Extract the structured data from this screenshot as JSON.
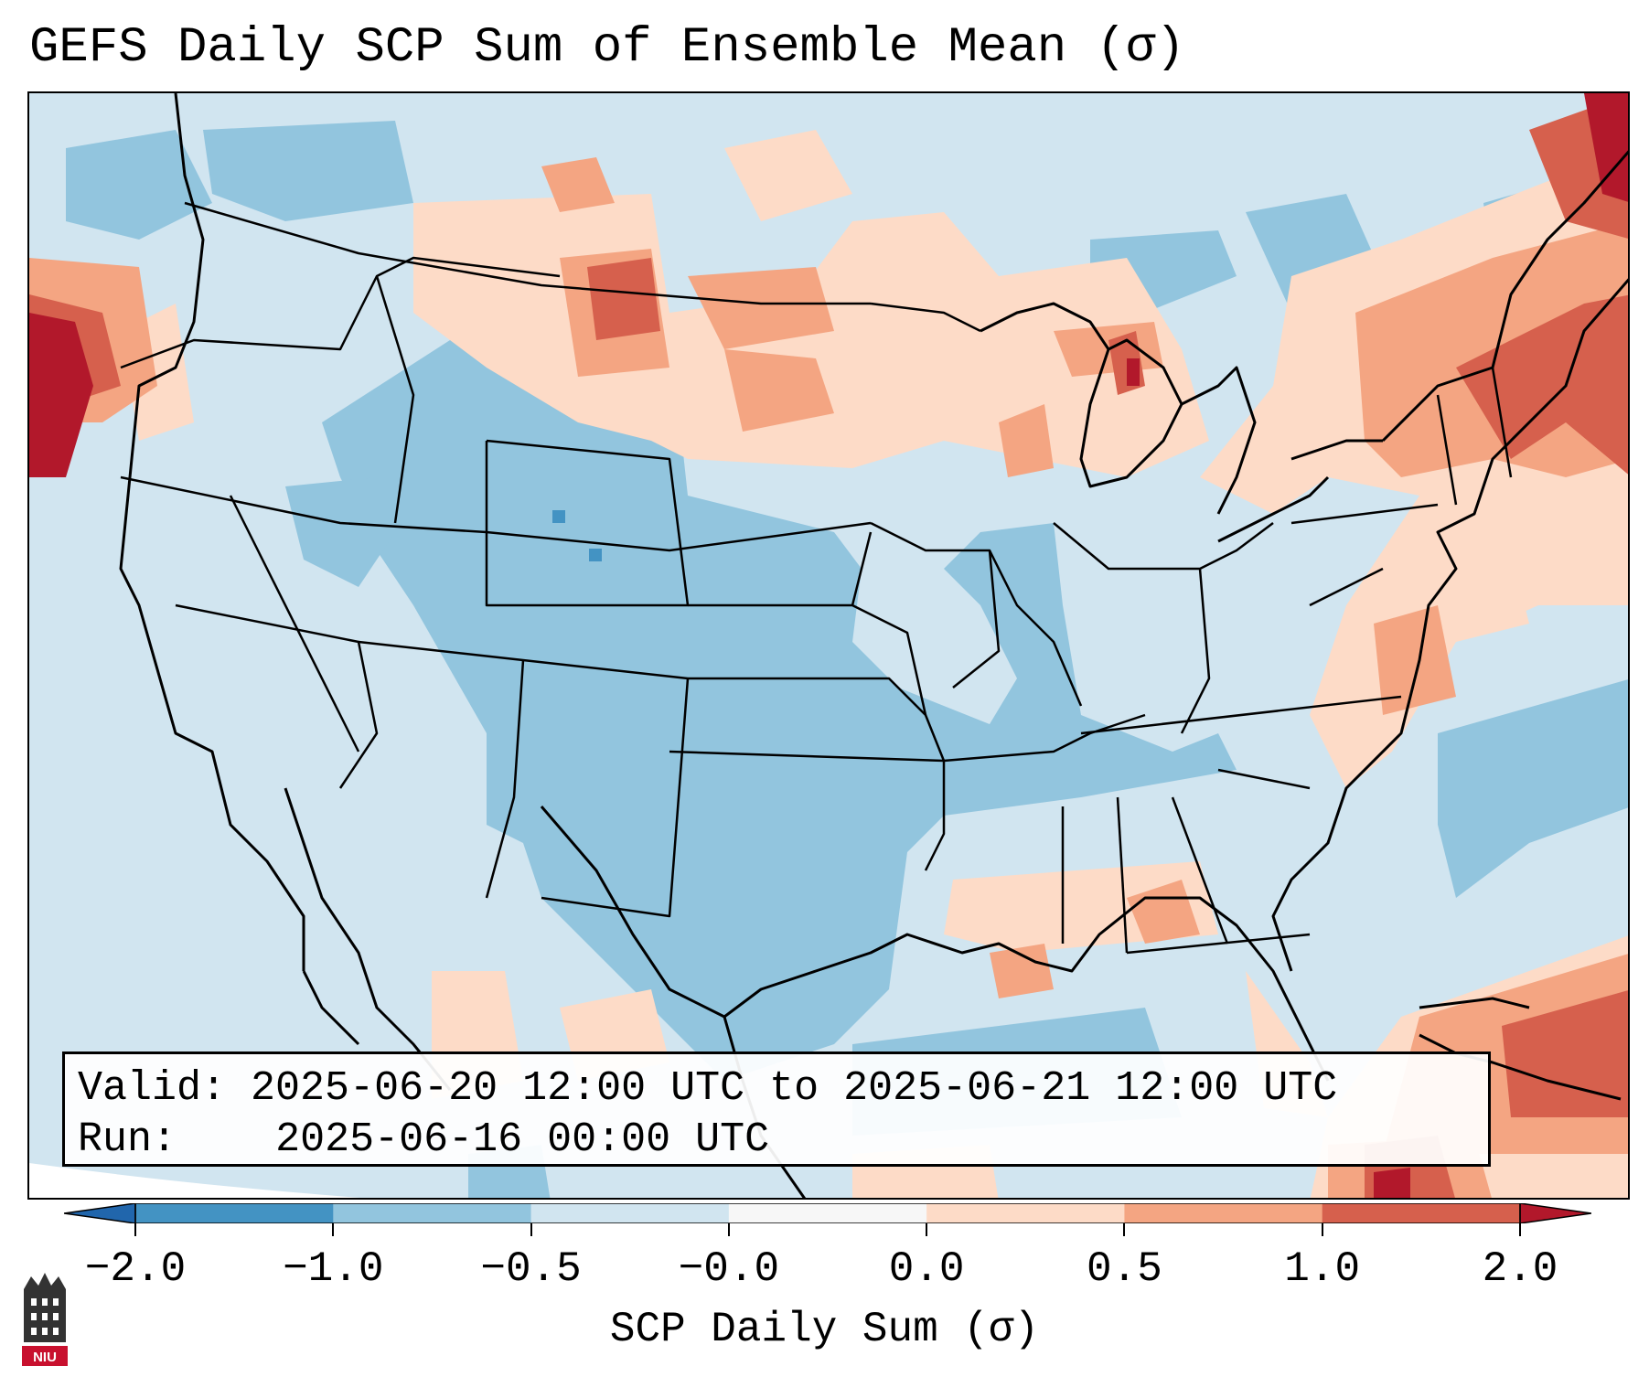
{
  "title": "GEFS Daily SCP Sum of Ensemble Mean (σ)",
  "info": {
    "valid_label": "Valid:",
    "valid_value": "2025-06-20 12:00 UTC to 2025-06-21 12:00 UTC",
    "run_label": "Run:",
    "run_value": "2025-06-16 00:00 UTC"
  },
  "colorbar": {
    "label": "SCP Daily Sum (σ)",
    "ticks": [
      "−2.0",
      "−1.0",
      "−0.5",
      "−0.0",
      "0.0",
      "0.5",
      "1.0",
      "2.0"
    ],
    "bins": [
      {
        "range": "-2.0 to -1.0",
        "color": "#4393c3"
      },
      {
        "range": "-1.0 to -0.5",
        "color": "#92c5de"
      },
      {
        "range": "-0.5 to 0.0",
        "color": "#d1e5f0"
      },
      {
        "range": "0.0",
        "color": "#f7f7f7"
      },
      {
        "range": "0.0 to 0.5",
        "color": "#fddbc7"
      },
      {
        "range": "0.5 to 1.0",
        "color": "#f4a582"
      },
      {
        "range": "1.0 to 2.0",
        "color": "#d6604d"
      },
      {
        "range": "> 2.0",
        "color": "#b2182b"
      }
    ],
    "under_color": "#2166ac",
    "over_color": "#b2182b"
  },
  "logo": {
    "text": "NIU"
  }
}
